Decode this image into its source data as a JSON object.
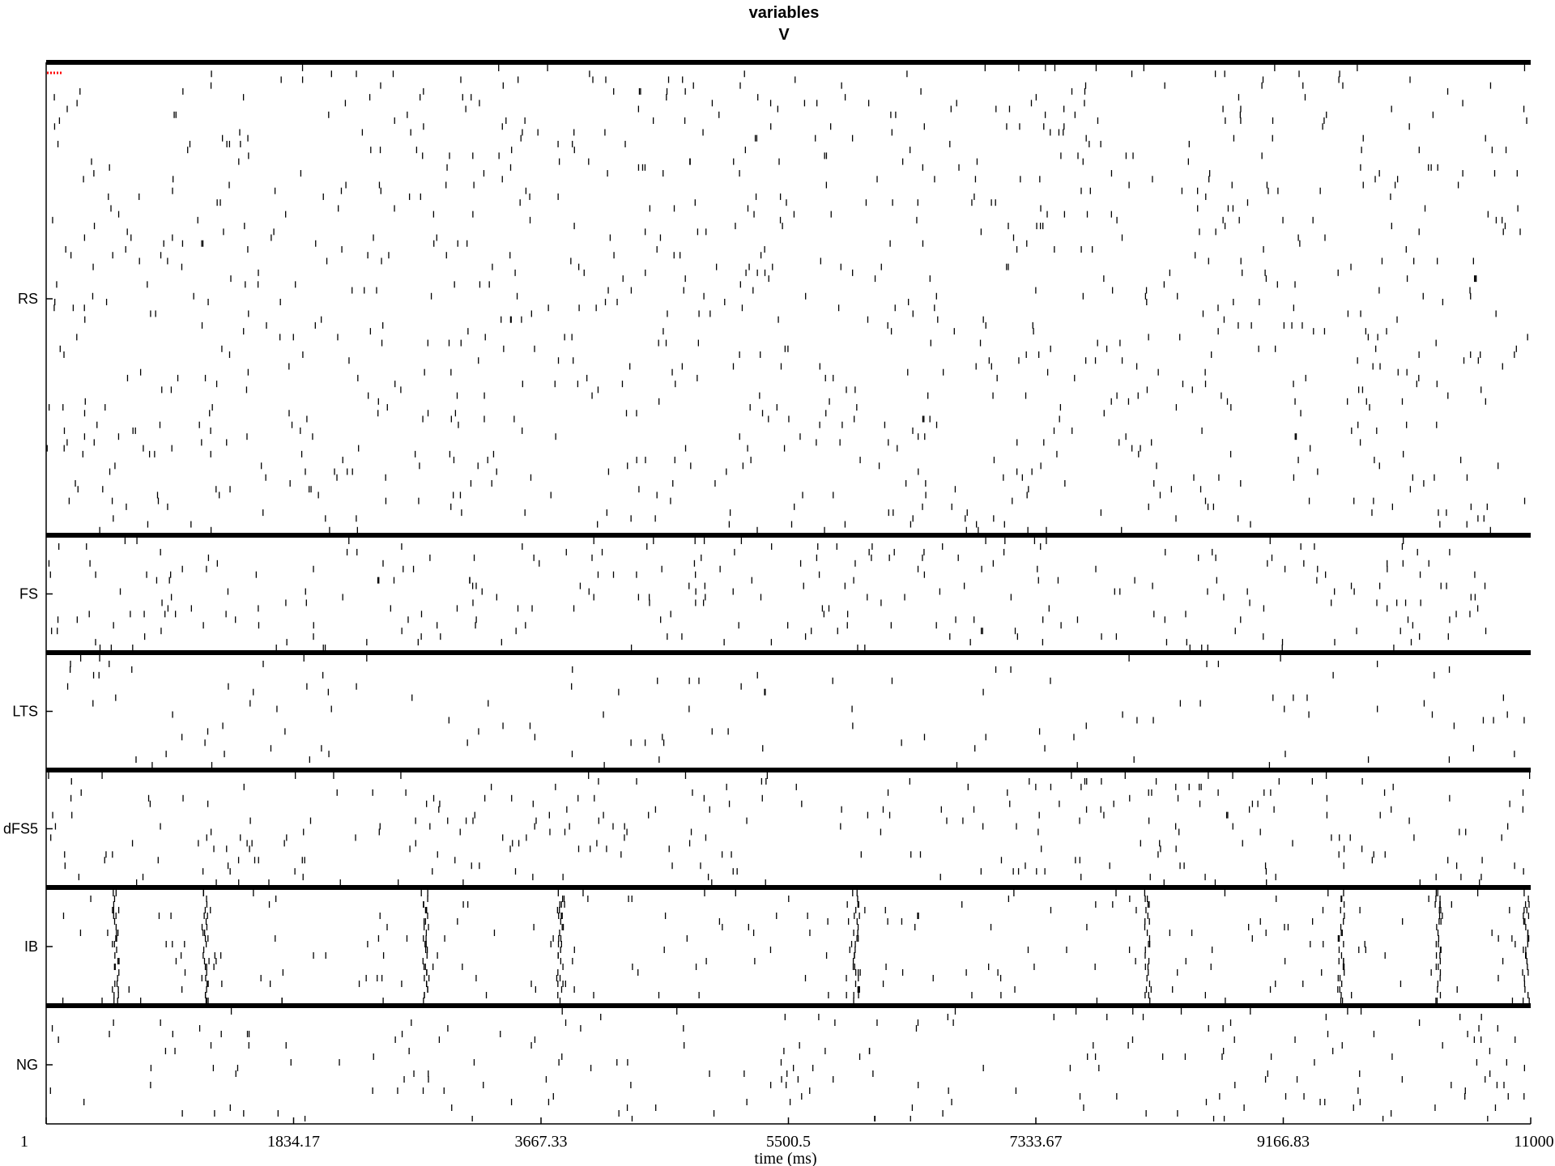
{
  "chart_data": {
    "type": "raster",
    "title_line1": "variables",
    "title_line2": "V",
    "xlabel": "time (ms)",
    "xlim": [
      1,
      11000
    ],
    "x_tick_labels": [
      "1",
      "1834.17",
      "3667.33",
      "5500.5",
      "7333.67",
      "9166.83",
      "11000"
    ],
    "x_tick_values": [
      1,
      1834.17,
      3667.33,
      5500.5,
      7333.67,
      9166.83,
      11000
    ],
    "populations": [
      {
        "name": "RS",
        "neurons": 80,
        "spikes_per_neuron": 12,
        "burst_times": []
      },
      {
        "name": "FS",
        "neurons": 20,
        "spikes_per_neuron": 14,
        "burst_times": []
      },
      {
        "name": "LTS",
        "neurons": 20,
        "spikes_per_neuron": 6,
        "burst_times": []
      },
      {
        "name": "dFS5",
        "neurons": 20,
        "spikes_per_neuron": 14,
        "burst_times": []
      },
      {
        "name": "IB",
        "neurons": 20,
        "spikes_per_neuron": 10,
        "burst_times": [
          520,
          1180,
          2810,
          3810,
          6000,
          8160,
          9600,
          10320,
          10970
        ]
      },
      {
        "name": "NG",
        "neurons": 20,
        "spikes_per_neuron": 10,
        "burst_times": []
      }
    ],
    "marker_color": "#ff0000",
    "spike_color": "#000000"
  }
}
